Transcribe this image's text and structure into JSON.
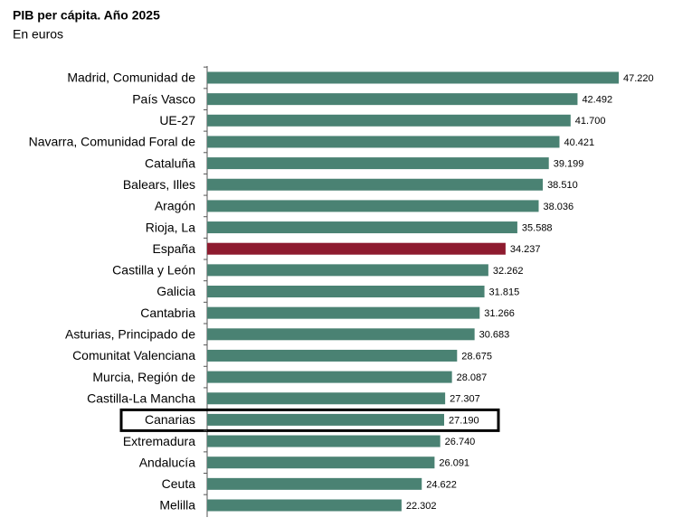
{
  "chart_data": {
    "type": "barh",
    "title": "PIB per cápita. Año 2025",
    "subtitle": "En euros",
    "categories": [
      "Madrid, Comunidad de",
      "País Vasco",
      "UE-27",
      "Navarra, Comunidad Foral de",
      "Cataluña",
      "Balears, Illes",
      "Aragón",
      "Rioja, La",
      "España",
      "Castilla y León",
      "Galicia",
      "Cantabria",
      "Asturias, Principado de",
      "Comunitat Valenciana",
      "Murcia, Región de",
      "Castilla-La Mancha",
      "Canarias",
      "Extremadura",
      "Andalucía",
      "Ceuta",
      "Melilla"
    ],
    "values": [
      47220,
      42492,
      41700,
      40421,
      39199,
      38510,
      38036,
      35588,
      34237,
      32262,
      31815,
      31266,
      30683,
      28675,
      28087,
      27307,
      27190,
      26740,
      26091,
      24622,
      22302
    ],
    "value_labels": [
      "47.220",
      "42.492",
      "41.700",
      "40.421",
      "39.199",
      "38.510",
      "38.036",
      "35.588",
      "34.237",
      "32.262",
      "31.815",
      "31.266",
      "30.683",
      "28.675",
      "28.087",
      "27.307",
      "27.190",
      "26.740",
      "26.091",
      "24.622",
      "22.302"
    ],
    "colors": [
      "#4a8273",
      "#4a8273",
      "#4a8273",
      "#4a8273",
      "#4a8273",
      "#4a8273",
      "#4a8273",
      "#4a8273",
      "#8e1b2f",
      "#4a8273",
      "#4a8273",
      "#4a8273",
      "#4a8273",
      "#4a8273",
      "#4a8273",
      "#4a8273",
      "#4a8273",
      "#4a8273",
      "#4a8273",
      "#4a8273",
      "#4a8273"
    ],
    "highlight_index": 16
  }
}
